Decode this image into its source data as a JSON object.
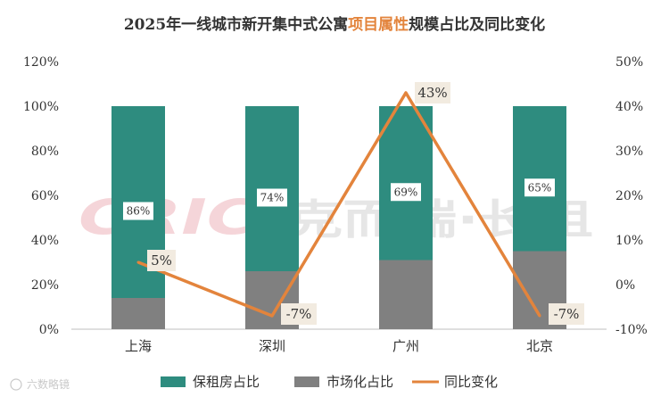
{
  "title": {
    "prefix": "2025年一线城市新开集中式公寓",
    "highlight": "项目属性",
    "suffix": "规模占比及同比变化"
  },
  "watermark": {
    "logo": "CRIC",
    "text": "克而瑞·长租"
  },
  "corner_watermark": "六数略镜",
  "colors": {
    "bar_primary": "#2e8c7f",
    "bar_secondary": "#808080",
    "line": "#e3843c",
    "label_bg": "#f2ebe0",
    "title_highlight": "#e3843c",
    "watermark": "#f2c4c9"
  },
  "chart_data": {
    "type": "bar",
    "stacked": true,
    "categories": [
      "上海",
      "深圳",
      "广州",
      "北京"
    ],
    "series": [
      {
        "name": "市场化占比",
        "type": "bar",
        "axis": "left",
        "values": [
          14,
          26,
          31,
          35
        ]
      },
      {
        "name": "保租房占比",
        "type": "bar",
        "axis": "left",
        "values": [
          86,
          74,
          69,
          65
        ]
      },
      {
        "name": "同比变化",
        "type": "line",
        "axis": "right",
        "values": [
          5,
          -7,
          43,
          -7
        ]
      }
    ],
    "bar_data_labels": [
      "86%",
      "74%",
      "69%",
      "65%"
    ],
    "line_data_labels": [
      "5%",
      "-7%",
      "43%",
      "-7%"
    ],
    "y_left": {
      "min": 0,
      "max": 120,
      "step": 20,
      "ticks": [
        "0%",
        "20%",
        "40%",
        "60%",
        "80%",
        "100%",
        "120%"
      ]
    },
    "y_right": {
      "min": -10,
      "max": 50,
      "step": 10,
      "ticks": [
        "-10%",
        "0%",
        "10%",
        "20%",
        "30%",
        "40%",
        "50%"
      ]
    },
    "legend": {
      "position": "bottom",
      "items": [
        {
          "label": "保租房占比",
          "kind": "bar"
        },
        {
          "label": "市场化占比",
          "kind": "bar"
        },
        {
          "label": "同比变化",
          "kind": "line"
        }
      ]
    },
    "grid": false
  }
}
